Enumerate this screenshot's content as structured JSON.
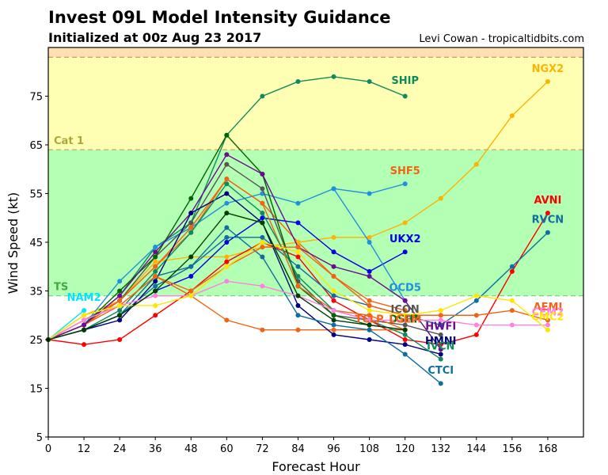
{
  "header": {
    "title": "Invest 09L Model Intensity Guidance",
    "subtitle": "Initialized at 00z Aug 23 2017",
    "credit": "Levi Cowan - tropicaltidbits.com"
  },
  "chart_data": {
    "type": "line",
    "title": "Invest 09L Model Intensity Guidance",
    "subtitle": "Initialized at 00z Aug 23 2017",
    "xlabel": "Forecast Hour",
    "ylabel": "Wind Speed (kt)",
    "xlim": [
      0,
      180
    ],
    "ylim": [
      5,
      85
    ],
    "xticks": [
      0,
      12,
      24,
      36,
      48,
      60,
      72,
      84,
      96,
      108,
      120,
      132,
      144,
      156,
      168
    ],
    "yticks": [
      5,
      15,
      25,
      35,
      45,
      55,
      65,
      75
    ],
    "grid": false,
    "bands": [
      {
        "name": "TD",
        "from": 5,
        "to": 34,
        "color": "#ffffff",
        "label": ""
      },
      {
        "name": "TS",
        "from": 34,
        "to": 64,
        "color": "#b3ffb3",
        "label": "TS",
        "label_color": "#3fa83f"
      },
      {
        "name": "Cat 1",
        "from": 64,
        "to": 83,
        "color": "#ffffb3",
        "label": "Cat 1",
        "label_color": "#a8a83a"
      },
      {
        "name": "Cat 2",
        "from": 83,
        "to": 85,
        "color": "#ffdfb3",
        "label": ""
      }
    ],
    "series": [
      {
        "name": "SHIP",
        "color": "#0f8a5f",
        "x": [
          0,
          12,
          24,
          36,
          48,
          60,
          72,
          84,
          96,
          108,
          120
        ],
        "values": [
          25,
          28,
          34,
          44,
          49,
          67,
          75,
          78,
          79,
          78,
          75
        ]
      },
      {
        "name": "SHF5",
        "color": "#f06414",
        "x": [
          0,
          12,
          24,
          36,
          48,
          60,
          72,
          84,
          96,
          108,
          120
        ],
        "values": [
          25,
          29,
          33,
          40,
          47,
          58,
          53,
          45,
          38,
          33,
          31
        ]
      },
      {
        "name": "NGX2",
        "color": "#ffb300",
        "x": [
          0,
          12,
          24,
          36,
          48,
          60,
          72,
          84,
          96,
          108,
          120,
          132,
          144,
          156,
          168
        ],
        "values": [
          25,
          30,
          33,
          41,
          42,
          42,
          44,
          45,
          46,
          46,
          49,
          54,
          61,
          71,
          78
        ]
      },
      {
        "name": "UKX2",
        "color": "#0000e6",
        "x": [
          0,
          12,
          24,
          36,
          48,
          60,
          72,
          84,
          96,
          108,
          120
        ],
        "values": [
          25,
          27,
          30,
          35,
          38,
          45,
          50,
          49,
          43,
          39,
          43
        ]
      },
      {
        "name": "OCD5",
        "color": "#1e90e0",
        "x": [
          0,
          12,
          24,
          36,
          48,
          60,
          72,
          84,
          96,
          108,
          120
        ],
        "values": [
          25,
          28,
          37,
          44,
          48,
          53,
          55,
          53,
          56,
          55,
          57
        ]
      },
      {
        "name": "OCD5b",
        "color": "#1e90e0",
        "x": [
          96,
          108,
          120
        ],
        "values": [
          56,
          45,
          33
        ],
        "hide_label": true
      },
      {
        "name": "AVNI",
        "color": "#ff0000",
        "x": [
          0,
          12,
          24,
          36,
          48,
          60,
          72,
          84,
          96,
          108,
          120,
          132,
          144,
          156,
          168
        ],
        "values": [
          25,
          24,
          25,
          30,
          35,
          41,
          45,
          42,
          33,
          29,
          25,
          24,
          26,
          39,
          51
        ]
      },
      {
        "name": "RVCN",
        "color": "#0f6ea0",
        "x": [
          0,
          12,
          24,
          36,
          48,
          60,
          72,
          84,
          96,
          108,
          120,
          132,
          144,
          156,
          168
        ],
        "values": [
          25,
          27,
          30,
          36,
          40,
          46,
          46,
          40,
          34,
          32,
          30,
          28,
          33,
          40,
          47
        ]
      },
      {
        "name": "ICON",
        "color": "#555555",
        "x": [
          0,
          12,
          24,
          36,
          48,
          60,
          72,
          84,
          96,
          108,
          120,
          132
        ],
        "values": [
          25,
          28,
          33,
          42,
          49,
          61,
          56,
          37,
          30,
          29,
          28,
          26
        ]
      },
      {
        "name": "TCLP",
        "color": "#f06414",
        "x": [
          0,
          12,
          24,
          36,
          48,
          60,
          72,
          84,
          96,
          108,
          120
        ],
        "values": [
          25,
          28,
          32,
          38,
          34,
          29,
          27,
          27,
          27,
          27,
          27
        ]
      },
      {
        "name": "DSHP",
        "color": "#006400",
        "x": [
          0,
          12,
          24,
          36,
          48,
          60,
          72,
          84,
          96,
          108,
          120
        ],
        "values": [
          25,
          28,
          35,
          42,
          54,
          67,
          59,
          36,
          30,
          28,
          27
        ]
      },
      {
        "name": "LGEM",
        "color": "#f06414",
        "x": [
          0,
          12,
          24,
          36,
          48,
          60,
          72,
          84,
          96,
          108,
          120
        ],
        "values": [
          25,
          28,
          33,
          40,
          48,
          58,
          53,
          36,
          31,
          30,
          27
        ]
      },
      {
        "name": "HWFI",
        "color": "#6a0d91",
        "x": [
          0,
          12,
          24,
          36,
          48,
          60,
          72,
          84,
          96,
          108,
          120,
          132
        ],
        "values": [
          25,
          28,
          34,
          43,
          51,
          63,
          59,
          44,
          40,
          38,
          33,
          23
        ]
      },
      {
        "name": "HMNI",
        "color": "#000080",
        "x": [
          0,
          12,
          24,
          36,
          48,
          60,
          72,
          84,
          96,
          108,
          120,
          132
        ],
        "values": [
          25,
          27,
          29,
          37,
          51,
          55,
          49,
          32,
          26,
          25,
          24,
          22
        ]
      },
      {
        "name": "IVCN",
        "color": "#0f8a5f",
        "x": [
          0,
          12,
          24,
          36,
          48,
          60,
          72,
          84,
          96,
          108,
          120,
          132
        ],
        "values": [
          25,
          27,
          31,
          39,
          47,
          57,
          51,
          38,
          31,
          29,
          26,
          21
        ]
      },
      {
        "name": "CTCI",
        "color": "#0f6ea0",
        "x": [
          0,
          12,
          24,
          36,
          48,
          60,
          72,
          84,
          96,
          108,
          120,
          132
        ],
        "values": [
          25,
          27,
          30,
          38,
          40,
          48,
          42,
          30,
          28,
          27,
          22,
          16
        ]
      },
      {
        "name": "NAM2",
        "color": "#00e5ff",
        "x": [
          0,
          12
        ],
        "values": [
          25,
          31
        ]
      },
      {
        "name": "AEMI",
        "color": "#f06414",
        "x": [
          0,
          12,
          24,
          36,
          48,
          60,
          72,
          84,
          96,
          108,
          120,
          132,
          144,
          156,
          168
        ],
        "values": [
          25,
          29,
          32,
          38,
          35,
          40,
          44,
          44,
          38,
          32,
          30,
          30,
          30,
          31,
          29
        ]
      },
      {
        "name": "CEM2",
        "color": "#ff80e0",
        "x": [
          0,
          12,
          24,
          36,
          48,
          60,
          72,
          84,
          96,
          108,
          120,
          132,
          144,
          156,
          168
        ],
        "values": [
          25,
          29,
          32,
          34,
          34,
          37,
          36,
          34,
          31,
          29,
          29,
          29,
          28,
          28,
          28
        ]
      },
      {
        "name": "CMC2",
        "color": "#ffe600",
        "x": [
          0,
          12,
          24,
          36,
          48,
          60,
          72,
          84,
          96,
          108,
          120,
          132,
          144,
          156,
          168
        ],
        "values": [
          25,
          30,
          32,
          32,
          34,
          40,
          45,
          43,
          35,
          31,
          30,
          31,
          34,
          33,
          27
        ]
      },
      {
        "name": "DKGRN",
        "color": "#003d00",
        "x": [
          0,
          12,
          24,
          36,
          48,
          60,
          72,
          84,
          96,
          108,
          120
        ],
        "values": [
          25,
          27,
          30,
          35,
          42,
          51,
          49,
          34,
          29,
          28,
          27
        ],
        "hide_label": true
      }
    ],
    "labels": [
      {
        "text": "SHIP",
        "series": "SHIP",
        "x": 120,
        "y": 77.5
      },
      {
        "text": "SHF5",
        "series": "SHF5",
        "x": 120,
        "y": 59
      },
      {
        "text": "NGX2",
        "series": "NGX2",
        "x": 168,
        "y": 80
      },
      {
        "text": "UKX2",
        "series": "UKX2",
        "x": 120,
        "y": 45
      },
      {
        "text": "OCD5",
        "series": "OCD5",
        "x": 120,
        "y": 35
      },
      {
        "text": "AVNI",
        "series": "AVNI",
        "x": 168,
        "y": 53
      },
      {
        "text": "RVCN",
        "series": "RVCN",
        "x": 168,
        "y": 49
      },
      {
        "text": "ICON",
        "series": "ICON",
        "x": 120,
        "y": 30.5
      },
      {
        "text": "TCLP",
        "series": "TCLP",
        "x": 108,
        "y": 28.5
      },
      {
        "text": "DSHP",
        "series": "DSHP",
        "x": 120,
        "y": 28.5
      },
      {
        "text": "LGEM",
        "series": "LGEM",
        "x": 120,
        "y": 28.5
      },
      {
        "text": "HWFI",
        "series": "HWFI",
        "x": 132,
        "y": 27
      },
      {
        "text": "HMNI",
        "series": "HMNI",
        "x": 132,
        "y": 24
      },
      {
        "text": "IVCN",
        "series": "IVCN",
        "x": 132,
        "y": 23
      },
      {
        "text": "CTCI",
        "series": "CTCI",
        "x": 132,
        "y": 18
      },
      {
        "text": "NAM2",
        "series": "NAM2",
        "x": 12,
        "y": 33
      },
      {
        "text": "AEMI",
        "series": "AEMI",
        "x": 168,
        "y": 31
      },
      {
        "text": "CEM2",
        "series": "CEM2",
        "x": 168,
        "y": 30
      },
      {
        "text": "CMC2",
        "series": "CMC2",
        "x": 168,
        "y": 29
      }
    ]
  }
}
